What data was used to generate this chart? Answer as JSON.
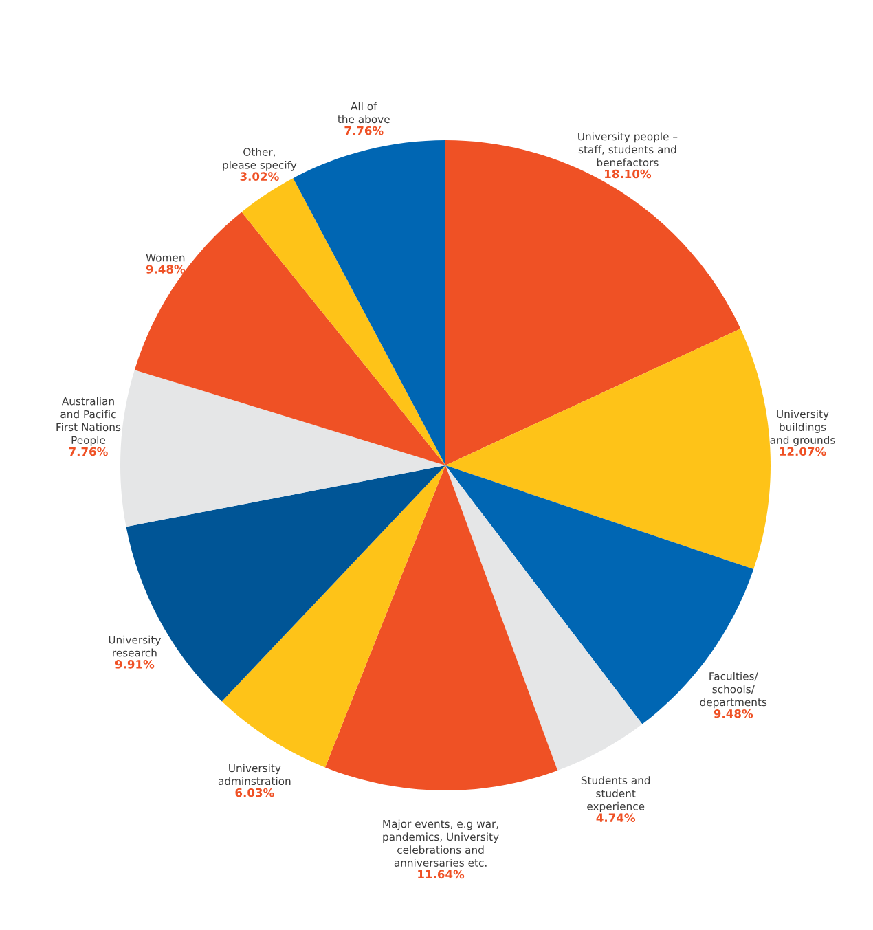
{
  "chart_data": {
    "type": "pie",
    "categories": [
      "University people –\nstaff, students and\nbenefactors",
      "University\nbuildings\nand grounds",
      "Faculties/\nschools/\ndepartments",
      "Students and\nstudent\nexperience",
      "Major events, e.g war,\npandemics, University\ncelebrations and\nanniversaries etc.",
      "University\nadminstration",
      "University\nresearch",
      "Australian\nand Pacific\nFirst Nations\nPeople",
      "Women",
      "Other,\nplease specify",
      "All of\nthe above"
    ],
    "values": [
      18.1,
      12.07,
      9.48,
      4.74,
      11.64,
      6.03,
      9.91,
      7.76,
      9.48,
      3.02,
      7.76
    ],
    "value_labels": [
      "18.10%",
      "12.07%",
      "9.48%",
      "4.74%",
      "11.64%",
      "6.03%",
      "9.91%",
      "7.76%",
      "9.48%",
      "3.02%",
      "7.76%"
    ],
    "colors": [
      "#ef5125",
      "#fec318",
      "#0066b3",
      "#e5e6e7",
      "#ef5125",
      "#fec318",
      "#005596",
      "#e5e6e7",
      "#ef5125",
      "#fec318",
      "#0066b3"
    ],
    "legend": false
  }
}
